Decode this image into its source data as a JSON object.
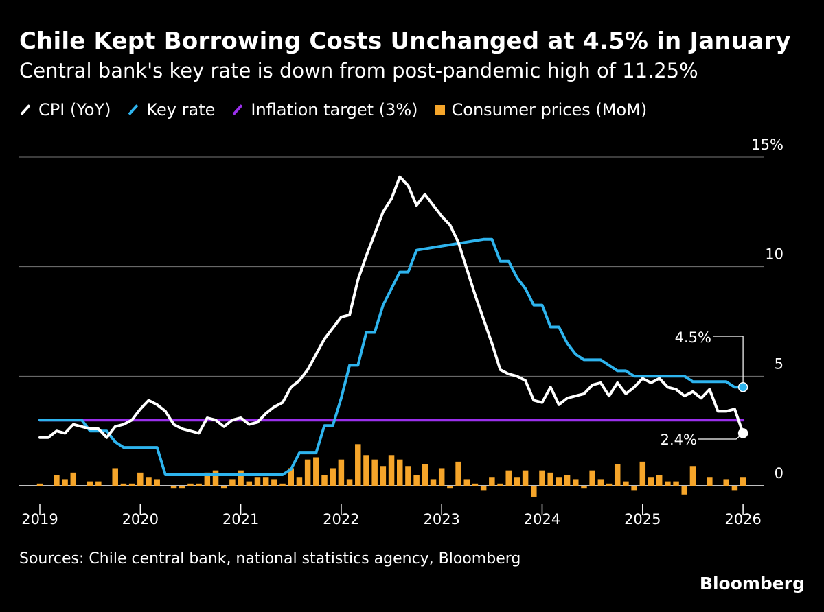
{
  "title": "Chile Kept Borrowing Costs Unchanged at 4.5% in January",
  "subtitle": "Central bank's key rate is down from post-pandemic high of 11.25%",
  "legend": [
    {
      "label": "CPI (YoY)",
      "color": "#ffffff",
      "shape": "line"
    },
    {
      "label": "Key rate",
      "color": "#2eb4ee",
      "shape": "line"
    },
    {
      "label": "Inflation target (3%)",
      "color": "#9b30ec",
      "shape": "line"
    },
    {
      "label": "Consumer prices (MoM)",
      "color": "#f5a52a",
      "shape": "square"
    }
  ],
  "source": "Sources: Chile central bank, national statistics agency, Bloomberg",
  "brand": "Bloomberg",
  "chart_data": {
    "type": "line",
    "x_tick_labels": [
      "2019",
      "2020",
      "2021",
      "2022",
      "2023",
      "2024",
      "2025",
      "2026"
    ],
    "y_tick_labels": [
      "15%",
      "10",
      "5",
      "0"
    ],
    "ylim": [
      -0.5,
      15
    ],
    "xlim": [
      "2019-01",
      "2026-02"
    ],
    "grid": "horizontal",
    "annotations": [
      {
        "text": "4.5%",
        "series": "Key rate",
        "x": "2026-01",
        "y": 4.5
      },
      {
        "text": "2.4%",
        "series": "CPI (YoY)",
        "x": "2026-01",
        "y": 2.4
      }
    ],
    "series": [
      {
        "name": "CPI (YoY)",
        "kind": "line",
        "color": "#ffffff",
        "x": [
          "2019-01",
          "2019-02",
          "2019-03",
          "2019-04",
          "2019-05",
          "2019-06",
          "2019-07",
          "2019-08",
          "2019-09",
          "2019-10",
          "2019-11",
          "2019-12",
          "2020-01",
          "2020-02",
          "2020-03",
          "2020-04",
          "2020-05",
          "2020-06",
          "2020-07",
          "2020-08",
          "2020-09",
          "2020-10",
          "2020-11",
          "2020-12",
          "2021-01",
          "2021-02",
          "2021-03",
          "2021-04",
          "2021-05",
          "2021-06",
          "2021-07",
          "2021-08",
          "2021-09",
          "2021-10",
          "2021-11",
          "2021-12",
          "2022-01",
          "2022-02",
          "2022-03",
          "2022-04",
          "2022-05",
          "2022-06",
          "2022-07",
          "2022-08",
          "2022-09",
          "2022-10",
          "2022-11",
          "2022-12",
          "2023-01",
          "2023-02",
          "2023-03",
          "2023-04",
          "2023-05",
          "2023-06",
          "2023-07",
          "2023-08",
          "2023-09",
          "2023-10",
          "2023-11",
          "2023-12",
          "2024-01",
          "2024-02",
          "2024-03",
          "2024-04",
          "2024-05",
          "2024-06",
          "2024-07",
          "2024-08",
          "2024-09",
          "2024-10",
          "2024-11",
          "2024-12",
          "2025-01",
          "2025-02",
          "2025-03",
          "2025-04",
          "2025-05",
          "2025-06",
          "2025-07",
          "2025-08",
          "2025-09",
          "2025-10",
          "2025-11",
          "2025-12",
          "2026-01"
        ],
        "values": [
          2.2,
          2.2,
          2.5,
          2.4,
          2.8,
          2.7,
          2.6,
          2.6,
          2.2,
          2.7,
          2.8,
          3.0,
          3.5,
          3.9,
          3.7,
          3.4,
          2.8,
          2.6,
          2.5,
          2.4,
          3.1,
          3.0,
          2.7,
          3.0,
          3.1,
          2.8,
          2.9,
          3.3,
          3.6,
          3.8,
          4.5,
          4.8,
          5.3,
          6.0,
          6.7,
          7.2,
          7.7,
          7.8,
          9.4,
          10.5,
          11.5,
          12.5,
          13.1,
          14.1,
          13.7,
          12.8,
          13.3,
          12.8,
          12.3,
          11.9,
          11.1,
          9.9,
          8.7,
          7.6,
          6.5,
          5.3,
          5.1,
          5.0,
          4.8,
          3.9,
          3.8,
          4.5,
          3.7,
          4.0,
          4.1,
          4.2,
          4.6,
          4.7,
          4.1,
          4.7,
          4.2,
          4.5,
          4.9,
          4.7,
          4.9,
          4.5,
          4.4,
          4.1,
          4.3,
          4.0,
          4.4,
          3.4,
          3.4,
          3.5,
          2.4
        ]
      },
      {
        "name": "Key rate",
        "kind": "line",
        "color": "#2eb4ee",
        "x": [
          "2019-01",
          "2019-06",
          "2019-07",
          "2019-09",
          "2019-10",
          "2019-11",
          "2020-03",
          "2020-04",
          "2021-06",
          "2021-07",
          "2021-08",
          "2021-10",
          "2021-11",
          "2021-12",
          "2022-01",
          "2022-02",
          "2022-03",
          "2022-04",
          "2022-05",
          "2022-06",
          "2022-07",
          "2022-08",
          "2022-09",
          "2022-10",
          "2023-06",
          "2023-07",
          "2023-08",
          "2023-09",
          "2023-10",
          "2023-11",
          "2023-12",
          "2024-01",
          "2024-02",
          "2024-03",
          "2024-04",
          "2024-05",
          "2024-06",
          "2024-07",
          "2024-08",
          "2024-09",
          "2024-10",
          "2024-11",
          "2024-12",
          "2025-01",
          "2025-02",
          "2025-06",
          "2025-07",
          "2025-08",
          "2025-11",
          "2025-12",
          "2026-01"
        ],
        "values": [
          3.0,
          3.0,
          2.5,
          2.5,
          2.0,
          1.75,
          1.75,
          0.5,
          0.5,
          0.75,
          1.5,
          1.5,
          2.75,
          2.75,
          4.0,
          5.5,
          5.5,
          7.0,
          7.0,
          8.25,
          9.0,
          9.75,
          9.75,
          10.75,
          11.25,
          11.25,
          10.25,
          10.25,
          9.5,
          9.0,
          8.25,
          8.25,
          7.25,
          7.25,
          6.5,
          6.0,
          5.75,
          5.75,
          5.75,
          5.5,
          5.25,
          5.25,
          5.0,
          5.0,
          5.0,
          5.0,
          4.75,
          4.75,
          4.75,
          4.5,
          4.5
        ]
      },
      {
        "name": "Inflation target (3%)",
        "kind": "line",
        "color": "#9b30ec",
        "x": [
          "2019-01",
          "2026-01"
        ],
        "values": [
          3.0,
          3.0
        ]
      },
      {
        "name": "Consumer prices (MoM)",
        "kind": "bar",
        "color": "#f5a52a",
        "x": [
          "2019-01",
          "2019-02",
          "2019-03",
          "2019-04",
          "2019-05",
          "2019-06",
          "2019-07",
          "2019-08",
          "2019-09",
          "2019-10",
          "2019-11",
          "2019-12",
          "2020-01",
          "2020-02",
          "2020-03",
          "2020-04",
          "2020-05",
          "2020-06",
          "2020-07",
          "2020-08",
          "2020-09",
          "2020-10",
          "2020-11",
          "2020-12",
          "2021-01",
          "2021-02",
          "2021-03",
          "2021-04",
          "2021-05",
          "2021-06",
          "2021-07",
          "2021-08",
          "2021-09",
          "2021-10",
          "2021-11",
          "2021-12",
          "2022-01",
          "2022-02",
          "2022-03",
          "2022-04",
          "2022-05",
          "2022-06",
          "2022-07",
          "2022-08",
          "2022-09",
          "2022-10",
          "2022-11",
          "2022-12",
          "2023-01",
          "2023-02",
          "2023-03",
          "2023-04",
          "2023-05",
          "2023-06",
          "2023-07",
          "2023-08",
          "2023-09",
          "2023-10",
          "2023-11",
          "2023-12",
          "2024-01",
          "2024-02",
          "2024-03",
          "2024-04",
          "2024-05",
          "2024-06",
          "2024-07",
          "2024-08",
          "2024-09",
          "2024-10",
          "2024-11",
          "2024-12",
          "2025-01",
          "2025-02",
          "2025-03",
          "2025-04",
          "2025-05",
          "2025-06",
          "2025-07",
          "2025-08",
          "2025-09",
          "2025-10",
          "2025-11",
          "2025-12",
          "2026-01"
        ],
        "values": [
          0.1,
          0.0,
          0.5,
          0.3,
          0.6,
          0.0,
          0.2,
          0.2,
          0.0,
          0.8,
          0.1,
          0.1,
          0.6,
          0.4,
          0.3,
          0.0,
          -0.1,
          -0.1,
          0.1,
          0.1,
          0.6,
          0.7,
          -0.1,
          0.3,
          0.7,
          0.2,
          0.4,
          0.4,
          0.3,
          0.1,
          0.8,
          0.4,
          1.2,
          1.3,
          0.5,
          0.8,
          1.2,
          0.3,
          1.9,
          1.4,
          1.2,
          0.9,
          1.4,
          1.2,
          0.9,
          0.5,
          1.0,
          0.3,
          0.8,
          -0.1,
          1.1,
          0.3,
          0.1,
          -0.2,
          0.4,
          0.1,
          0.7,
          0.4,
          0.7,
          -0.5,
          0.7,
          0.6,
          0.4,
          0.5,
          0.3,
          -0.1,
          0.7,
          0.3,
          0.1,
          1.0,
          0.2,
          -0.2,
          1.1,
          0.4,
          0.5,
          0.2,
          0.2,
          -0.4,
          0.9,
          0.0,
          0.4,
          0.0,
          0.3,
          -0.2,
          0.4
        ]
      }
    ]
  }
}
